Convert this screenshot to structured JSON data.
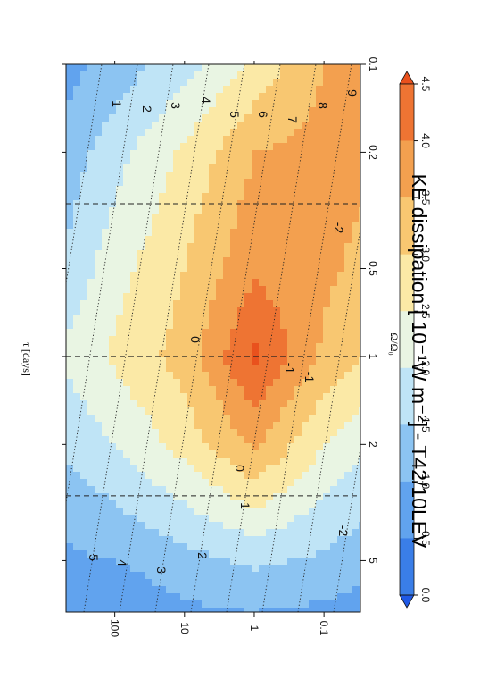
{
  "chart_data": {
    "type": "heatmap",
    "orientation": "rotated-90-cw",
    "title": "KE dissipation [ 10⁻¹W m⁻²] - T42/10LEV",
    "xlabel": "Ω/Ω₀",
    "ylabel": "τ [days]",
    "x_scale": "log",
    "y_scale": "log",
    "xlim": [
      0.1,
      7.5
    ],
    "ylim": [
      0.03,
      500
    ],
    "x_ticks": [
      "0.1",
      "0.2",
      "0.5",
      "1",
      "2",
      "5"
    ],
    "x_tick_values": [
      0.1,
      0.2,
      0.5,
      1,
      2,
      5
    ],
    "y_ticks": [
      "0.1",
      "1",
      "10",
      "100"
    ],
    "y_tick_values": [
      0.1,
      1,
      10,
      100
    ],
    "dashed_reference_x": [
      0.3,
      1,
      3
    ],
    "colorbar": {
      "ticks": [
        "0.0",
        "0.5",
        "1.0",
        "1.5",
        "2.0",
        "2.5",
        "3.0",
        "3.5",
        "4.0",
        "4.5"
      ],
      "levels": [
        0.0,
        0.5,
        1.0,
        1.5,
        2.0,
        2.5,
        3.0,
        3.5,
        4.0,
        4.5
      ],
      "colors": [
        "#1f59e6",
        "#3a7ee8",
        "#61a3ee",
        "#8cc4f2",
        "#bfe4f6",
        "#e9f5e3",
        "#fbe9a6",
        "#f8c771",
        "#f3a04f",
        "#ee7433",
        "#e9511d"
      ]
    },
    "field_grid": {
      "x": [
        0.1,
        0.2,
        0.5,
        1,
        2,
        5,
        7.5
      ],
      "y": [
        500,
        100,
        10,
        1,
        0.1,
        0.03
      ],
      "values": [
        [
          0.8,
          1.2,
          1.6,
          2.1,
          1.6,
          0.9,
          0.5
        ],
        [
          1.2,
          1.8,
          2.3,
          2.6,
          2.0,
          1.0,
          0.6
        ],
        [
          1.8,
          2.6,
          3.0,
          3.2,
          2.7,
          1.3,
          0.9
        ],
        [
          2.6,
          3.5,
          3.9,
          4.6,
          3.6,
          1.6,
          1.0
        ],
        [
          3.5,
          3.7,
          3.6,
          3.4,
          2.5,
          1.4,
          0.9
        ],
        [
          3.6,
          3.6,
          3.4,
          3.0,
          2.1,
          1.2,
          0.8
        ]
      ]
    },
    "contour_line_labels": [
      "9",
      "8",
      "7",
      "6",
      "5",
      "4",
      "3",
      "2",
      "1",
      "0",
      "-1",
      "-2",
      "5",
      "4",
      "3",
      "2",
      "1",
      "0",
      "-1",
      "-2"
    ]
  }
}
